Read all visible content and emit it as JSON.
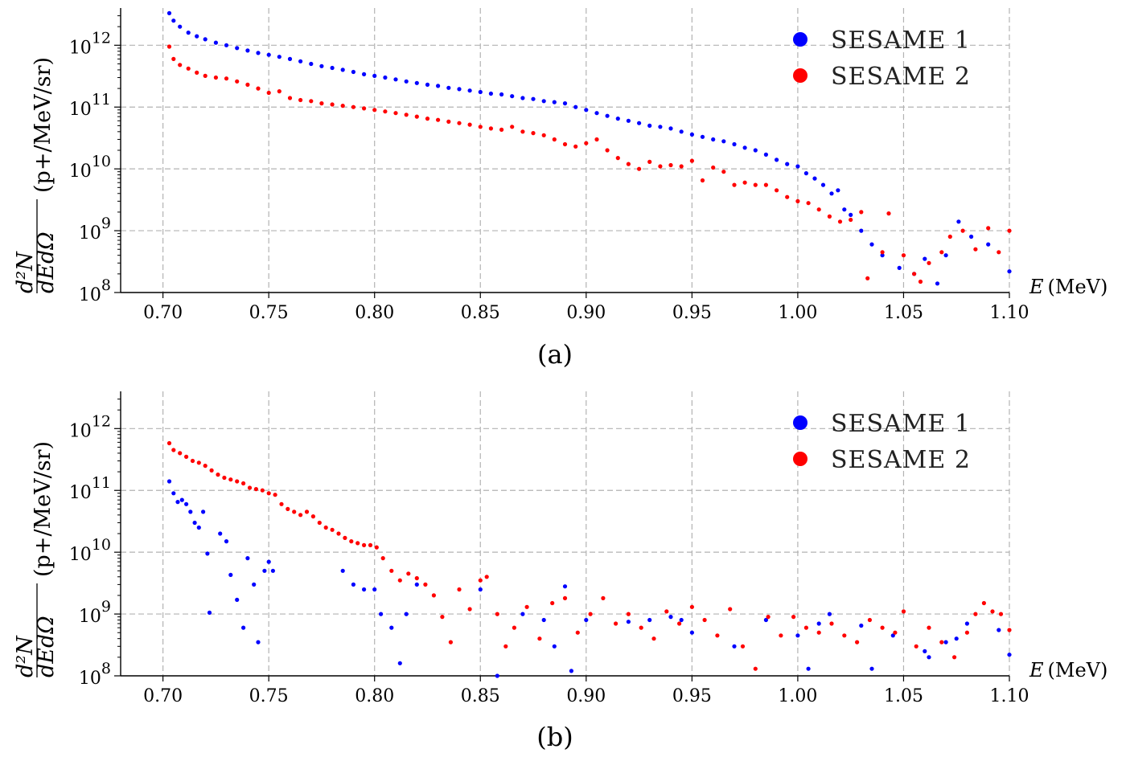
{
  "chart_data": [
    {
      "type": "scatter",
      "caption": "(a)",
      "xlabel": "E (MeV)",
      "xlabel_var": "E",
      "xlabel_unit": "(MeV)",
      "ylabel": "d²N/dEdΩ (p+/MeV/sr)",
      "ylabel_fraction_num": "d²N",
      "ylabel_fraction_den": "dEdΩ",
      "ylabel_unit": "(p+/MeV/sr)",
      "xlim": [
        0.68,
        1.1
      ],
      "ylim": [
        100000000.0,
        4000000000000.0
      ],
      "yscale": "log",
      "grid": true,
      "legend_position": "top-right",
      "xticks": [
        "0.70",
        "0.75",
        "0.80",
        "0.85",
        "0.90",
        "0.95",
        "1.00",
        "1.05",
        "1.10"
      ],
      "xtick_values": [
        0.7,
        0.75,
        0.8,
        0.85,
        0.9,
        0.95,
        1.0,
        1.05,
        1.1
      ],
      "yticks": [
        {
          "base": "10",
          "exp": "12",
          "value": 1000000000000.0
        },
        {
          "base": "10",
          "exp": "11",
          "value": 100000000000.0
        },
        {
          "base": "10",
          "exp": "10",
          "value": 10000000000.0
        },
        {
          "base": "10",
          "exp": "9",
          "value": 1000000000.0
        },
        {
          "base": "10",
          "exp": "8",
          "value": 100000000.0
        }
      ],
      "series": [
        {
          "name": "SESAME 1",
          "color": "#0000ff",
          "x": [
            0.703,
            0.705,
            0.708,
            0.712,
            0.716,
            0.72,
            0.725,
            0.73,
            0.735,
            0.74,
            0.745,
            0.75,
            0.755,
            0.76,
            0.765,
            0.77,
            0.775,
            0.78,
            0.785,
            0.79,
            0.795,
            0.8,
            0.805,
            0.81,
            0.815,
            0.82,
            0.825,
            0.83,
            0.835,
            0.84,
            0.845,
            0.85,
            0.855,
            0.86,
            0.865,
            0.87,
            0.875,
            0.88,
            0.885,
            0.89,
            0.895,
            0.9,
            0.905,
            0.91,
            0.915,
            0.92,
            0.925,
            0.93,
            0.935,
            0.94,
            0.945,
            0.95,
            0.955,
            0.96,
            0.965,
            0.97,
            0.975,
            0.98,
            0.985,
            0.99,
            0.995,
            1.0,
            1.004,
            1.008,
            1.012,
            1.016,
            1.019,
            1.022,
            1.025,
            1.03,
            1.035,
            1.04,
            1.048,
            1.055,
            1.06,
            1.066,
            1.07,
            1.076,
            1.082,
            1.09,
            1.1
          ],
          "y": [
            3300000000000.0,
            2500000000000.0,
            2000000000000.0,
            1600000000000.0,
            1400000000000.0,
            1250000000000.0,
            1100000000000.0,
            1000000000000.0,
            900000000000.0,
            820000000000.0,
            750000000000.0,
            700000000000.0,
            650000000000.0,
            600000000000.0,
            550000000000.0,
            500000000000.0,
            460000000000.0,
            430000000000.0,
            400000000000.0,
            370000000000.0,
            340000000000.0,
            320000000000.0,
            300000000000.0,
            280000000000.0,
            260000000000.0,
            245000000000.0,
            230000000000.0,
            220000000000.0,
            205000000000.0,
            195000000000.0,
            185000000000.0,
            175000000000.0,
            165000000000.0,
            160000000000.0,
            150000000000.0,
            140000000000.0,
            135000000000.0,
            125000000000.0,
            120000000000.0,
            115000000000.0,
            100000000000.0,
            90000000000.0,
            80000000000.0,
            72000000000.0,
            65000000000.0,
            60000000000.0,
            55000000000.0,
            50000000000.0,
            48000000000.0,
            45000000000.0,
            40000000000.0,
            36000000000.0,
            33000000000.0,
            30000000000.0,
            28000000000.0,
            25000000000.0,
            22000000000.0,
            20000000000.0,
            17000000000.0,
            14000000000.0,
            12000000000.0,
            11000000000.0,
            8500000000.0,
            7000000000.0,
            5500000000.0,
            4000000000.0,
            4500000000.0,
            2200000000.0,
            1800000000.0,
            1000000000.0,
            600000000.0,
            400000000.0,
            250000000.0,
            200000000.0,
            350000000.0,
            140000000.0,
            400000000.0,
            1400000000.0,
            800000000.0,
            600000000.0,
            220000000.0
          ]
        },
        {
          "name": "SESAME 2",
          "color": "#ff0000",
          "x": [
            0.703,
            0.705,
            0.708,
            0.712,
            0.716,
            0.72,
            0.725,
            0.73,
            0.735,
            0.74,
            0.745,
            0.75,
            0.755,
            0.76,
            0.765,
            0.77,
            0.775,
            0.78,
            0.785,
            0.79,
            0.795,
            0.8,
            0.805,
            0.81,
            0.815,
            0.82,
            0.825,
            0.83,
            0.835,
            0.84,
            0.845,
            0.85,
            0.855,
            0.86,
            0.865,
            0.87,
            0.875,
            0.88,
            0.885,
            0.89,
            0.895,
            0.9,
            0.905,
            0.91,
            0.915,
            0.92,
            0.925,
            0.93,
            0.935,
            0.94,
            0.945,
            0.95,
            0.955,
            0.96,
            0.965,
            0.97,
            0.975,
            0.98,
            0.985,
            0.99,
            0.995,
            1.0,
            1.005,
            1.01,
            1.015,
            1.02,
            1.025,
            1.03,
            1.033,
            1.04,
            1.043,
            1.05,
            1.055,
            1.058,
            1.062,
            1.068,
            1.072,
            1.078,
            1.084,
            1.09,
            1.095,
            1.1
          ],
          "y": [
            950000000000.0,
            600000000000.0,
            480000000000.0,
            420000000000.0,
            360000000000.0,
            320000000000.0,
            300000000000.0,
            290000000000.0,
            260000000000.0,
            230000000000.0,
            200000000000.0,
            170000000000.0,
            180000000000.0,
            140000000000.0,
            130000000000.0,
            125000000000.0,
            115000000000.0,
            110000000000.0,
            105000000000.0,
            100000000000.0,
            95000000000.0,
            90000000000.0,
            85000000000.0,
            80000000000.0,
            75000000000.0,
            70000000000.0,
            65000000000.0,
            62000000000.0,
            58000000000.0,
            55000000000.0,
            52000000000.0,
            48000000000.0,
            45000000000.0,
            43000000000.0,
            48000000000.0,
            40000000000.0,
            38000000000.0,
            35000000000.0,
            30000000000.0,
            25000000000.0,
            23000000000.0,
            26000000000.0,
            30000000000.0,
            20000000000.0,
            15000000000.0,
            12000000000.0,
            10000000000.0,
            13000000000.0,
            11000000000.0,
            11500000000.0,
            11000000000.0,
            13500000000.0,
            6500000000.0,
            10500000000.0,
            9000000000.0,
            5500000000.0,
            6000000000.0,
            5500000000.0,
            5500000000.0,
            4500000000.0,
            3500000000.0,
            3000000000.0,
            2800000000.0,
            2200000000.0,
            1700000000.0,
            1400000000.0,
            1500000000.0,
            2000000000.0,
            170000000.0,
            450000000.0,
            1900000000.0,
            400000000.0,
            200000000.0,
            150000000.0,
            300000000.0,
            450000000.0,
            800000000.0,
            1000000000.0,
            500000000.0,
            1100000000.0,
            450000000.0,
            1000000000.0
          ]
        }
      ]
    },
    {
      "type": "scatter",
      "caption": "(b)",
      "xlabel": "E (MeV)",
      "xlabel_var": "E",
      "xlabel_unit": "(MeV)",
      "ylabel": "d²N/dEdΩ (p+/MeV/sr)",
      "ylabel_fraction_num": "d²N",
      "ylabel_fraction_den": "dEdΩ",
      "ylabel_unit": "(p+/MeV/sr)",
      "xlim": [
        0.68,
        1.1
      ],
      "ylim": [
        100000000.0,
        4000000000000.0
      ],
      "yscale": "log",
      "grid": true,
      "legend_position": "top-right",
      "xticks": [
        "0.70",
        "0.75",
        "0.80",
        "0.85",
        "0.90",
        "0.95",
        "1.00",
        "1.05",
        "1.10"
      ],
      "xtick_values": [
        0.7,
        0.75,
        0.8,
        0.85,
        0.9,
        0.95,
        1.0,
        1.05,
        1.1
      ],
      "yticks": [
        {
          "base": "10",
          "exp": "12",
          "value": 1000000000000.0
        },
        {
          "base": "10",
          "exp": "11",
          "value": 100000000000.0
        },
        {
          "base": "10",
          "exp": "10",
          "value": 10000000000.0
        },
        {
          "base": "10",
          "exp": "9",
          "value": 1000000000.0
        },
        {
          "base": "10",
          "exp": "8",
          "value": 100000000.0
        }
      ],
      "series": [
        {
          "name": "SESAME 1",
          "color": "#0000ff",
          "x": [
            0.703,
            0.705,
            0.707,
            0.709,
            0.711,
            0.713,
            0.715,
            0.717,
            0.719,
            0.721,
            0.722,
            0.727,
            0.73,
            0.732,
            0.735,
            0.738,
            0.74,
            0.743,
            0.745,
            0.748,
            0.75,
            0.752,
            0.785,
            0.79,
            0.795,
            0.8,
            0.803,
            0.808,
            0.812,
            0.815,
            0.82,
            0.85,
            0.858,
            0.87,
            0.88,
            0.885,
            0.89,
            0.893,
            0.9,
            0.92,
            0.93,
            0.94,
            0.945,
            0.95,
            0.97,
            0.985,
            1.0,
            1.005,
            1.01,
            1.015,
            1.03,
            1.035,
            1.045,
            1.06,
            1.062,
            1.07,
            1.075,
            1.08,
            1.095,
            1.1
          ],
          "y": [
            140000000000.0,
            90000000000.0,
            65000000000.0,
            70000000000.0,
            60000000000.0,
            45000000000.0,
            30000000000.0,
            25000000000.0,
            45000000000.0,
            9500000000.0,
            1050000000.0,
            20000000000.0,
            15000000000.0,
            4300000000.0,
            1700000000.0,
            600000000.0,
            8000000000.0,
            3000000000.0,
            350000000.0,
            5000000000.0,
            7000000000.0,
            5000000000.0,
            5000000000.0,
            3000000000.0,
            2500000000.0,
            2500000000.0,
            1000000000.0,
            600000000.0,
            160000000.0,
            1000000000.0,
            3000000000.0,
            2500000000.0,
            100000000.0,
            1000000000.0,
            800000000.0,
            300000000.0,
            2800000000.0,
            120000000.0,
            800000000.0,
            750000000.0,
            800000000.0,
            900000000.0,
            800000000.0,
            500000000.0,
            300000000.0,
            800000000.0,
            450000000.0,
            130000000.0,
            700000000.0,
            1000000000.0,
            650000000.0,
            130000000.0,
            450000000.0,
            250000000.0,
            200000000.0,
            350000000.0,
            400000000.0,
            700000000.0,
            550000000.0,
            220000000.0
          ]
        },
        {
          "name": "SESAME 2",
          "color": "#ff0000",
          "x": [
            0.703,
            0.705,
            0.708,
            0.711,
            0.714,
            0.717,
            0.72,
            0.723,
            0.726,
            0.729,
            0.732,
            0.735,
            0.738,
            0.741,
            0.744,
            0.747,
            0.75,
            0.753,
            0.756,
            0.759,
            0.762,
            0.765,
            0.768,
            0.771,
            0.774,
            0.777,
            0.78,
            0.783,
            0.786,
            0.789,
            0.792,
            0.795,
            0.798,
            0.801,
            0.804,
            0.808,
            0.812,
            0.816,
            0.82,
            0.824,
            0.828,
            0.832,
            0.836,
            0.84,
            0.845,
            0.85,
            0.853,
            0.858,
            0.862,
            0.866,
            0.872,
            0.878,
            0.884,
            0.89,
            0.896,
            0.902,
            0.908,
            0.914,
            0.92,
            0.926,
            0.932,
            0.938,
            0.944,
            0.95,
            0.956,
            0.962,
            0.968,
            0.974,
            0.98,
            0.986,
            0.992,
            0.998,
            1.004,
            1.01,
            1.016,
            1.022,
            1.028,
            1.034,
            1.04,
            1.046,
            1.05,
            1.056,
            1.062,
            1.068,
            1.074,
            1.08,
            1.084,
            1.088,
            1.092,
            1.096,
            1.1
          ],
          "y": [
            580000000000.0,
            450000000000.0,
            400000000000.0,
            350000000000.0,
            300000000000.0,
            280000000000.0,
            250000000000.0,
            210000000000.0,
            180000000000.0,
            160000000000.0,
            150000000000.0,
            140000000000.0,
            130000000000.0,
            110000000000.0,
            105000000000.0,
            100000000000.0,
            90000000000.0,
            85000000000.0,
            60000000000.0,
            50000000000.0,
            45000000000.0,
            40000000000.0,
            45000000000.0,
            38000000000.0,
            30000000000.0,
            25000000000.0,
            23000000000.0,
            20000000000.0,
            17000000000.0,
            15000000000.0,
            14000000000.0,
            13000000000.0,
            13000000000.0,
            12000000000.0,
            8000000000.0,
            5000000000.0,
            3500000000.0,
            4500000000.0,
            3800000000.0,
            3000000000.0,
            2000000000.0,
            900000000.0,
            350000000.0,
            2500000000.0,
            1200000000.0,
            3500000000.0,
            4000000000.0,
            1000000000.0,
            300000000.0,
            600000000.0,
            1300000000.0,
            400000000.0,
            1500000000.0,
            1800000000.0,
            500000000.0,
            1000000000.0,
            1800000000.0,
            700000000.0,
            1000000000.0,
            600000000.0,
            400000000.0,
            1100000000.0,
            700000000.0,
            1300000000.0,
            800000000.0,
            450000000.0,
            1200000000.0,
            300000000.0,
            130000000.0,
            900000000.0,
            450000000.0,
            900000000.0,
            600000000.0,
            500000000.0,
            700000000.0,
            450000000.0,
            350000000.0,
            800000000.0,
            600000000.0,
            500000000.0,
            1100000000.0,
            300000000.0,
            600000000.0,
            350000000.0,
            200000000.0,
            500000000.0,
            1000000000.0,
            1500000000.0,
            1100000000.0,
            1000000000.0,
            550000000.0
          ]
        }
      ]
    }
  ]
}
